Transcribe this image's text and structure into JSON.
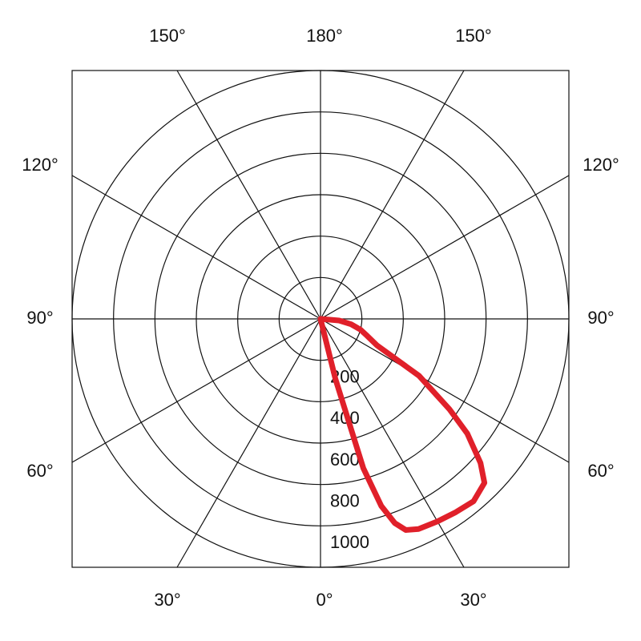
{
  "chart_data": {
    "type": "polar",
    "angle_ticks": [
      {
        "value": 0,
        "label": "0°"
      },
      {
        "value": 30,
        "label": "30°"
      },
      {
        "value": 60,
        "label": "60°"
      },
      {
        "value": 90,
        "label": "90°"
      },
      {
        "value": 120,
        "label": "120°"
      },
      {
        "value": 150,
        "label": "150°"
      },
      {
        "value": 180,
        "label": "180°"
      },
      {
        "value": -30,
        "label": "30°"
      },
      {
        "value": -60,
        "label": "60°"
      },
      {
        "value": -90,
        "label": "90°"
      },
      {
        "value": -120,
        "label": "120°"
      },
      {
        "value": -150,
        "label": "150°"
      }
    ],
    "rlim": [
      0,
      1200
    ],
    "rticks": [
      200,
      400,
      600,
      800,
      1000
    ],
    "series": [
      {
        "color": "#e0202a",
        "angles": [
          12,
          14,
          16,
          18,
          20,
          22,
          25,
          30,
          35,
          40,
          45,
          48,
          52,
          55,
          60,
          65,
          70,
          75,
          80,
          85,
          90
        ],
        "values": [
          0,
          300,
          750,
          950,
          1050,
          1100,
          1120,
          1130,
          1140,
          1150,
          1120,
          1040,
          900,
          760,
          550,
          300,
          240,
          200,
          150,
          90,
          0
        ]
      }
    ]
  }
}
